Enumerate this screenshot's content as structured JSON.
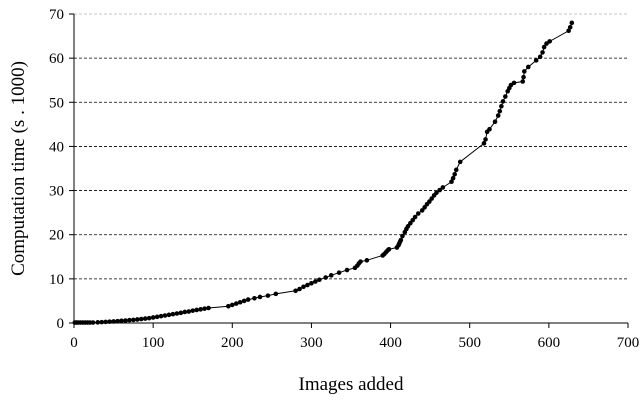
{
  "chart_data": {
    "type": "line",
    "title": "",
    "xlabel": "Images added",
    "ylabel": "Computation time (s . 1000)",
    "xlim": [
      0,
      700
    ],
    "ylim": [
      0,
      70
    ],
    "x_ticks": [
      "0",
      "100",
      "200",
      "300",
      "400",
      "500",
      "600",
      "700"
    ],
    "y_ticks": [
      "0",
      "10",
      "20",
      "30",
      "40",
      "50",
      "60",
      "70"
    ],
    "grid": "horizontal dashed",
    "legend": "none",
    "series": [
      {
        "color": "#000000",
        "marker": "filled-circle",
        "x": [
          1,
          3,
          5,
          8,
          11,
          14,
          17,
          20,
          24,
          30,
          35,
          40,
          45,
          50,
          55,
          60,
          65,
          70,
          75,
          80,
          85,
          90,
          95,
          100,
          105,
          110,
          115,
          120,
          125,
          130,
          135,
          140,
          145,
          150,
          155,
          160,
          165,
          170,
          195,
          200,
          205,
          210,
          215,
          220,
          228,
          235,
          245,
          255,
          280,
          285,
          290,
          295,
          300,
          305,
          310,
          318,
          325,
          335,
          345,
          355,
          358,
          360,
          362,
          370,
          390,
          392,
          394,
          396,
          398,
          408,
          410,
          411,
          412,
          413,
          415,
          418,
          420,
          422,
          425,
          428,
          431,
          435,
          440,
          443,
          446,
          449,
          452,
          455,
          458,
          462,
          466,
          477,
          479,
          481,
          483,
          488,
          518,
          520,
          522,
          525,
          532,
          536,
          538,
          540,
          542,
          545,
          548,
          550,
          552,
          556,
          567,
          568,
          569,
          574,
          584,
          589,
          592,
          594,
          597,
          601,
          625,
          627,
          629
        ],
        "values": [
          0.1,
          0.1,
          0.1,
          0.1,
          0.1,
          0.1,
          0.1,
          0.1,
          0.1,
          0.15,
          0.2,
          0.25,
          0.3,
          0.35,
          0.4,
          0.5,
          0.55,
          0.65,
          0.7,
          0.8,
          0.9,
          1.0,
          1.1,
          1.25,
          1.4,
          1.55,
          1.7,
          1.85,
          2.0,
          2.15,
          2.3,
          2.5,
          2.6,
          2.8,
          2.95,
          3.1,
          3.25,
          3.4,
          3.8,
          4.1,
          4.4,
          4.7,
          5.0,
          5.3,
          5.6,
          5.9,
          6.2,
          6.6,
          7.3,
          7.7,
          8.2,
          8.6,
          9.0,
          9.4,
          9.8,
          10.3,
          10.8,
          11.4,
          12.0,
          12.5,
          13.0,
          13.5,
          13.9,
          14.2,
          15.3,
          15.6,
          16.0,
          16.4,
          16.7,
          17.1,
          17.6,
          18.0,
          18.4,
          18.8,
          19.7,
          20.6,
          21.3,
          21.9,
          22.6,
          23.3,
          24.0,
          24.8,
          25.5,
          26.2,
          26.9,
          27.5,
          28.2,
          28.9,
          29.5,
          30.1,
          30.7,
          32.0,
          32.8,
          33.7,
          34.7,
          36.5,
          40.7,
          41.6,
          43.3,
          43.9,
          45.6,
          47.0,
          48.0,
          49.1,
          50.2,
          51.3,
          52.5,
          53.2,
          53.9,
          54.4,
          54.7,
          55.7,
          57.0,
          58.0,
          59.5,
          60.3,
          61.3,
          62.5,
          63.3,
          63.8,
          66.2,
          67.0,
          68.0
        ]
      }
    ]
  }
}
